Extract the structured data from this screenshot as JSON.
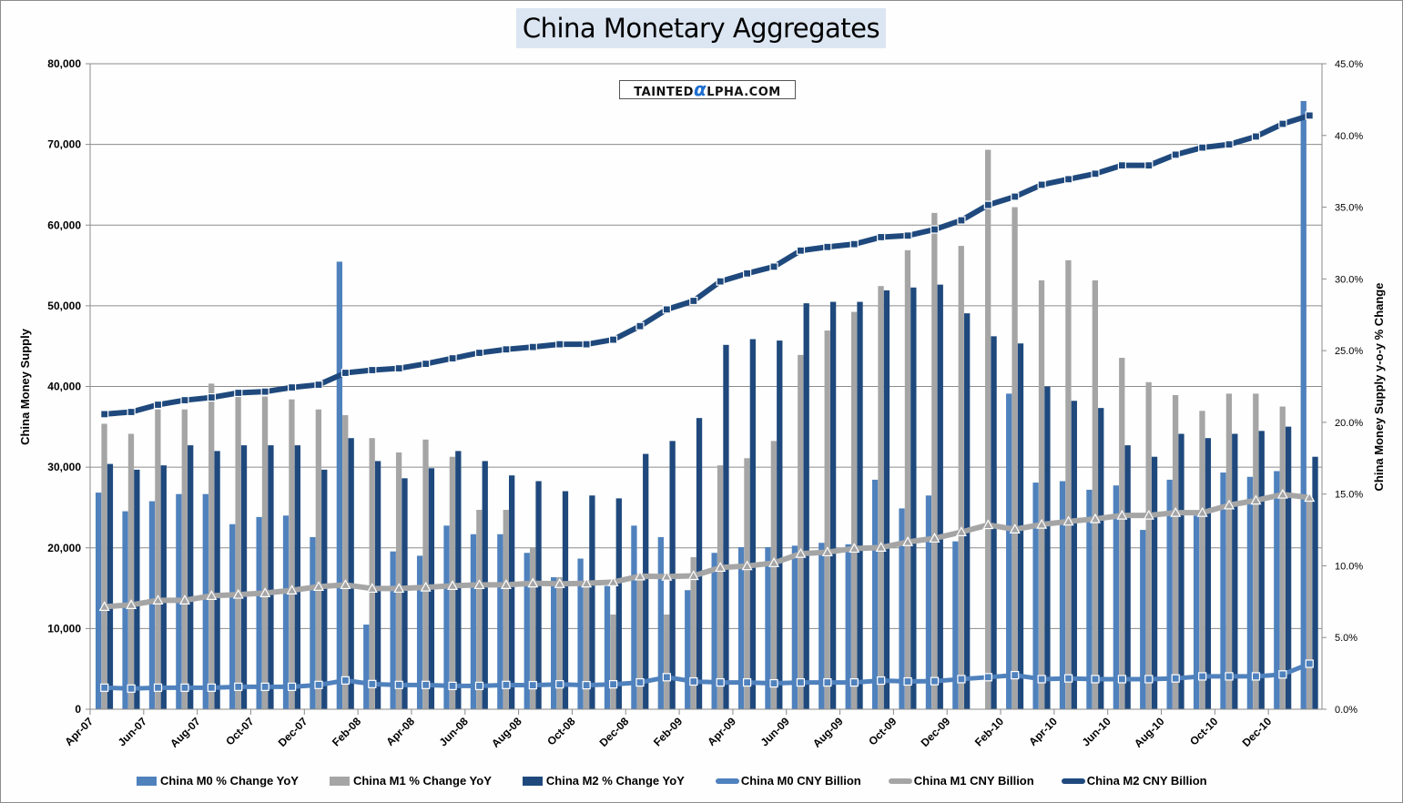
{
  "chart_data": {
    "type": "bar+line",
    "title": "China Monetary Aggregates",
    "watermark": "TAINTEDALPHA.COM",
    "ylabel_left": "China Money Supply",
    "ylabel_right": "China Money Supply y-o-y % Change",
    "ylim_left": [
      0,
      80000
    ],
    "ylim_right": [
      0,
      45
    ],
    "left_ticks": [
      "0",
      "10,000",
      "20,000",
      "30,000",
      "40,000",
      "50,000",
      "60,000",
      "70,000",
      "80,000"
    ],
    "right_ticks": [
      "0.0%",
      "5.0%",
      "10.0%",
      "15.0%",
      "20.0%",
      "25.0%",
      "30.0%",
      "35.0%",
      "40.0%",
      "45.0%"
    ],
    "grid": true,
    "legend_position": "bottom",
    "x": [
      "Apr-07",
      "May-07",
      "Jun-07",
      "Jul-07",
      "Aug-07",
      "Sep-07",
      "Oct-07",
      "Nov-07",
      "Dec-07",
      "Jan-08",
      "Feb-08",
      "Mar-08",
      "Apr-08",
      "May-08",
      "Jun-08",
      "Jul-08",
      "Aug-08",
      "Sep-08",
      "Oct-08",
      "Nov-08",
      "Dec-08",
      "Jan-09",
      "Feb-09",
      "Mar-09",
      "Apr-09",
      "May-09",
      "Jun-09",
      "Jul-09",
      "Aug-09",
      "Sep-09",
      "Oct-09",
      "Nov-09",
      "Dec-09",
      "Jan-10",
      "Feb-10",
      "Mar-10",
      "Apr-10",
      "May-10",
      "Jun-10",
      "Jul-10",
      "Aug-10",
      "Sep-10",
      "Oct-10",
      "Nov-10",
      "Dec-10",
      "Jan-11"
    ],
    "x_tick_labels": [
      "Apr-07",
      "Jun-07",
      "Aug-07",
      "Oct-07",
      "Dec-07",
      "Feb-08",
      "Apr-08",
      "Jun-08",
      "Aug-08",
      "Oct-08",
      "Dec-08",
      "Feb-09",
      "Apr-09",
      "Jun-09",
      "Aug-09",
      "Oct-09",
      "Dec-09",
      "Feb-10",
      "Apr-10",
      "Jun-10",
      "Aug-10",
      "Oct-10",
      "Dec-10"
    ],
    "series": [
      {
        "name": "China M0 % Change YoY",
        "kind": "bar",
        "axis": "right",
        "color": "#4F81BD",
        "values": [
          15.1,
          13.8,
          14.5,
          15.0,
          15.0,
          12.9,
          13.4,
          13.5,
          12.0,
          31.2,
          5.9,
          11.0,
          10.7,
          12.8,
          12.2,
          12.2,
          10.9,
          9.2,
          10.5,
          8.6,
          12.8,
          12.0,
          8.3,
          10.9,
          11.3,
          11.3,
          11.4,
          11.6,
          11.5,
          16.0,
          14.0,
          14.9,
          11.7,
          null,
          22.0,
          15.8,
          15.9,
          15.3,
          15.6,
          12.5,
          16.0,
          13.5,
          16.5,
          16.2,
          16.6,
          42.4
        ]
      },
      {
        "name": "China M1 % Change YoY",
        "kind": "bar",
        "axis": "right",
        "color": "#A5A5A5",
        "values": [
          19.9,
          19.2,
          20.9,
          20.9,
          22.7,
          21.8,
          21.8,
          21.6,
          20.9,
          20.5,
          18.9,
          17.9,
          18.8,
          17.6,
          13.9,
          13.9,
          11.3,
          9.2,
          8.9,
          6.6,
          9.3,
          6.6,
          10.6,
          17.0,
          17.5,
          18.7,
          24.7,
          26.4,
          27.7,
          29.5,
          32.0,
          34.6,
          32.3,
          39.0,
          35.0,
          29.9,
          31.3,
          29.9,
          24.5,
          22.8,
          21.9,
          20.8,
          22.0,
          22.0,
          21.1,
          14.7
        ]
      },
      {
        "name": "China M2 % Change YoY",
        "kind": "bar",
        "axis": "right",
        "color": "#1F497D",
        "values": [
          17.1,
          16.7,
          17.0,
          18.4,
          18.0,
          18.4,
          18.4,
          18.4,
          16.7,
          18.9,
          17.3,
          16.1,
          16.8,
          18.0,
          17.3,
          16.3,
          15.9,
          15.2,
          14.9,
          14.7,
          17.8,
          18.7,
          20.3,
          25.4,
          25.8,
          25.7,
          28.3,
          28.4,
          28.4,
          29.2,
          29.4,
          29.6,
          27.6,
          26.0,
          25.5,
          22.5,
          21.5,
          21.0,
          18.4,
          17.6,
          19.2,
          18.9,
          19.2,
          19.4,
          19.7,
          17.6
        ]
      },
      {
        "name": "China M0 CNY Billion",
        "kind": "line",
        "axis": "left",
        "color": "#4F81BD",
        "values": [
          2670,
          2560,
          2670,
          2670,
          2670,
          2780,
          2780,
          2780,
          3010,
          3570,
          3120,
          3010,
          3010,
          2890,
          2890,
          3010,
          2980,
          3090,
          2980,
          3090,
          3320,
          3970,
          3440,
          3320,
          3320,
          3210,
          3320,
          3320,
          3320,
          3550,
          3440,
          3480,
          3730,
          3970,
          4220,
          3730,
          3820,
          3730,
          3730,
          3730,
          3820,
          4070,
          4070,
          4070,
          4310,
          5640
        ]
      },
      {
        "name": "China M1 CNY Billion",
        "kind": "line",
        "axis": "left",
        "color": "#A5A5A5",
        "values": [
          12710,
          12930,
          13500,
          13500,
          14060,
          14210,
          14400,
          14740,
          15190,
          15410,
          14960,
          14960,
          15110,
          15300,
          15410,
          15420,
          15610,
          15540,
          15610,
          15760,
          16490,
          16450,
          16530,
          17560,
          17750,
          18130,
          19280,
          19470,
          19920,
          20040,
          20730,
          21180,
          21960,
          22840,
          22300,
          22890,
          23280,
          23580,
          24020,
          24020,
          24360,
          24360,
          25290,
          25880,
          26620,
          26230
        ]
      },
      {
        "name": "China M2 CNY Billion",
        "kind": "line",
        "axis": "left",
        "color": "#1F497D",
        "values": [
          36570,
          36840,
          37740,
          38300,
          38640,
          39210,
          39360,
          39880,
          40220,
          41690,
          42030,
          42250,
          42810,
          43490,
          44170,
          44600,
          44890,
          45230,
          45230,
          45800,
          47480,
          49550,
          50610,
          53020,
          54010,
          54850,
          56840,
          57290,
          57640,
          58510,
          58700,
          59460,
          60590,
          62500,
          63530,
          65000,
          65690,
          66370,
          67400,
          67400,
          68730,
          69610,
          70000,
          70980,
          72550,
          73580
        ]
      }
    ]
  }
}
